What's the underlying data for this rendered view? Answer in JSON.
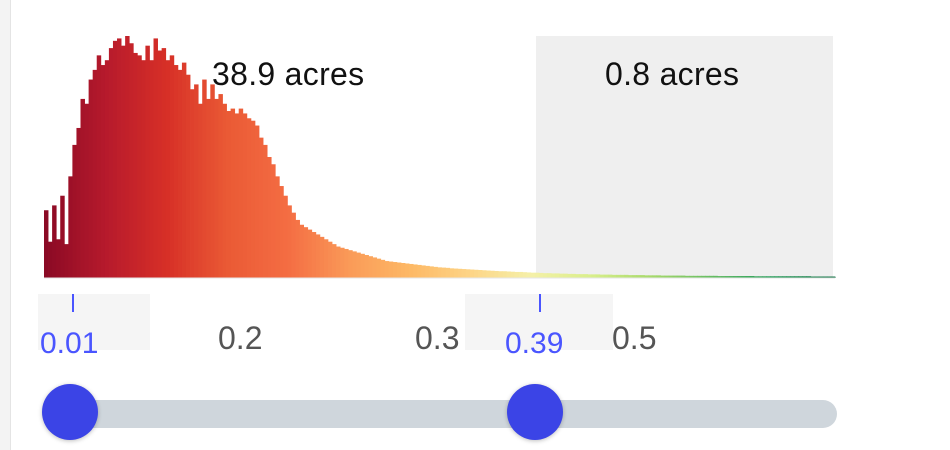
{
  "histogram": {
    "left_label": "38.9 acres",
    "right_label": "0.8 acres",
    "bars": [
      0.28,
      0.15,
      0.3,
      0.16,
      0.34,
      0.14,
      0.42,
      0.55,
      0.62,
      0.74,
      0.72,
      0.82,
      0.86,
      0.92,
      0.88,
      0.9,
      0.95,
      0.98,
      0.99,
      0.96,
      1.0,
      0.97,
      0.93,
      0.92,
      0.9,
      0.96,
      0.9,
      0.99,
      0.94,
      0.95,
      0.9,
      0.92,
      0.88,
      0.86,
      0.89,
      0.84,
      0.78,
      0.8,
      0.72,
      0.82,
      0.74,
      0.8,
      0.74,
      0.76,
      0.72,
      0.69,
      0.7,
      0.68,
      0.7,
      0.68,
      0.66,
      0.65,
      0.63,
      0.58,
      0.55,
      0.5,
      0.47,
      0.42,
      0.38,
      0.34,
      0.3,
      0.27,
      0.24,
      0.22,
      0.21,
      0.2,
      0.19,
      0.18,
      0.17,
      0.16,
      0.15,
      0.14,
      0.13,
      0.125,
      0.12,
      0.115,
      0.11,
      0.105,
      0.1,
      0.095,
      0.09,
      0.085,
      0.08,
      0.075,
      0.07,
      0.068,
      0.066,
      0.064,
      0.062,
      0.06,
      0.058,
      0.056,
      0.054,
      0.052,
      0.05,
      0.048,
      0.046,
      0.044,
      0.043,
      0.042,
      0.04,
      0.039,
      0.038,
      0.037,
      0.036,
      0.035,
      0.034,
      0.033,
      0.032,
      0.031,
      0.03,
      0.029,
      0.028,
      0.028,
      0.027,
      0.026,
      0.025,
      0.025,
      0.024,
      0.023,
      0.022,
      0.022,
      0.021,
      0.02,
      0.02,
      0.019,
      0.019,
      0.018,
      0.018,
      0.017,
      0.017,
      0.016,
      0.016,
      0.016,
      0.015,
      0.015,
      0.015,
      0.014,
      0.014,
      0.014,
      0.013,
      0.013,
      0.013,
      0.013,
      0.012,
      0.012,
      0.012,
      0.012,
      0.011,
      0.011,
      0.011,
      0.011,
      0.01,
      0.01,
      0.01,
      0.01,
      0.01,
      0.01,
      0.009,
      0.009,
      0.009,
      0.009,
      0.009,
      0.009,
      0.009,
      0.009,
      0.008,
      0.008,
      0.008,
      0.008,
      0.008,
      0.008,
      0.008,
      0.008,
      0.008,
      0.007,
      0.007,
      0.007,
      0.007,
      0.007,
      0.007,
      0.007,
      0.007,
      0.007,
      0.007,
      0.007,
      0.007,
      0.007,
      0.007,
      0.006,
      0.006,
      0.006,
      0.006,
      0.006,
      0.006
    ],
    "color_scale": [
      "#8b0a25",
      "#b71a2c",
      "#d73027",
      "#ea5a35",
      "#f46d43",
      "#fa9a58",
      "#fdb865",
      "#fdd486",
      "#f5f0a8",
      "#d9ef8b",
      "#a6d96a",
      "#66bd63",
      "#1a9850",
      "#006837"
    ],
    "excluded_shading": "#efefef"
  },
  "axis": {
    "tick_02": "0.2",
    "tick_03": "0.3",
    "tick_05": "0.5"
  },
  "range": {
    "low": "0.01",
    "high": "0.39"
  },
  "colors": {
    "accent": "#3b44e6",
    "marker": "#4a55ff",
    "track": "#cfd6dc"
  }
}
